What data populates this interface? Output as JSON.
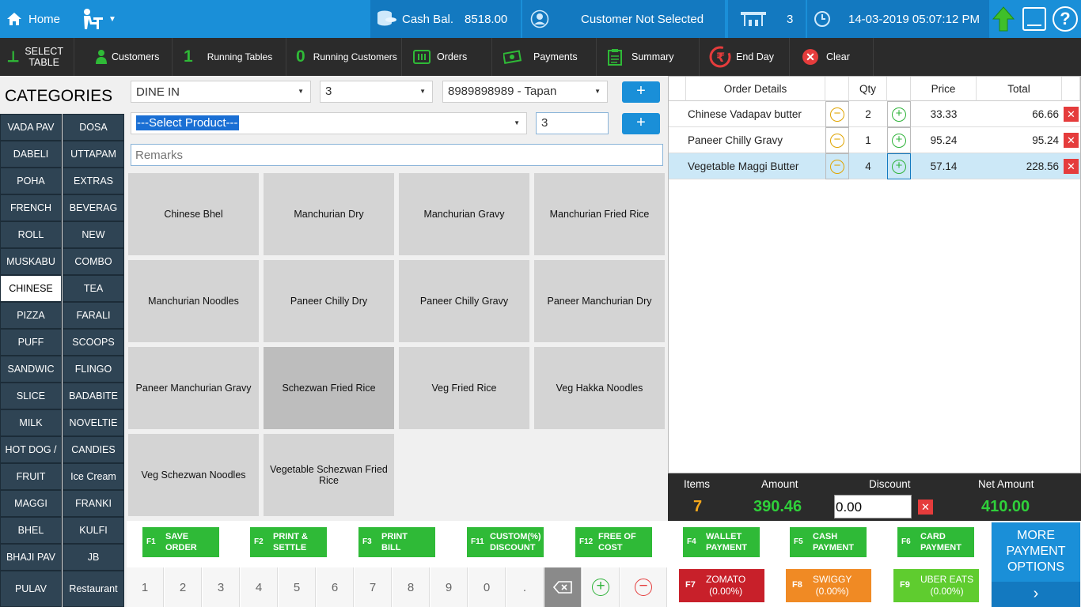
{
  "header": {
    "home": "Home",
    "cash_label": "Cash Bal.",
    "cash_value": "8518.00",
    "customer_status": "Customer Not Selected",
    "table_no": "3",
    "datetime": "14-03-2019 05:07:12 PM"
  },
  "toolbar": {
    "select_table_line1": "SELECT",
    "select_table_line2": "TABLE",
    "customers": "Customers",
    "running_tables_count": "1",
    "running_tables": "Running Tables",
    "running_customers_count": "0",
    "running_customers": "Running Customers",
    "orders": "Orders",
    "payments": "Payments",
    "summary": "Summary",
    "end_day": "End Day",
    "clear": "Clear"
  },
  "categories_title": "CATEGORIES",
  "categories": [
    "VADA PAV",
    "DOSA",
    "DABELI",
    "UTTAPAM",
    "POHA",
    "EXTRAS",
    "FRENCH",
    "BEVERAG",
    "ROLL",
    "NEW",
    "MUSKABU",
    "COMBO",
    "CHINESE",
    "TEA",
    "PIZZA",
    "FARALI",
    "PUFF",
    "SCOOPS",
    "SANDWIC",
    "FLINGO",
    "SLICE",
    "BADABITE",
    "MILK",
    "NOVELTIE",
    "HOT DOG /",
    "CANDIES",
    "FRUIT",
    "Ice Cream",
    "MAGGI",
    "FRANKI",
    "BHEL",
    "KULFI",
    "BHAJI PAV",
    "JB",
    "PULAV",
    "Restaurant"
  ],
  "selected_category": "CHINESE",
  "form": {
    "order_type": "DINE IN",
    "table": "3",
    "customer": "8989898989 - Tapan",
    "add": "+",
    "product": "---Select Product---",
    "qty": "3",
    "remarks_placeholder": "Remarks"
  },
  "products": [
    "Chinese Bhel",
    "Manchurian  Dry",
    "Manchurian  Gravy",
    "Manchurian Fried Rice",
    "Manchurian Noodles",
    "Paneer Chilly  Dry",
    "Paneer Chilly Gravy",
    "Paneer Manchurian  Dry",
    "Paneer Manchurian  Gravy",
    "Schezwan Fried Rice",
    "Veg Fried Rice",
    "Veg Hakka Noodles",
    "Veg Schezwan Noodles",
    "Vegetable Schezwan Fried Rice"
  ],
  "order": {
    "headers": [
      "Order Details",
      "Qty",
      "Price",
      "Total"
    ],
    "rows": [
      {
        "name": "Chinese Vadapav  butter",
        "qty": "2",
        "price": "33.33",
        "total": "66.66"
      },
      {
        "name": "Paneer Chilly Gravy",
        "qty": "1",
        "price": "95.24",
        "total": "95.24"
      },
      {
        "name": "Vegetable Maggi  Butter",
        "qty": "4",
        "price": "57.14",
        "total": "228.56"
      }
    ]
  },
  "summary": {
    "items_label": "Items",
    "items": "7",
    "amount_label": "Amount",
    "amount": "390.46",
    "discount_label": "Discount",
    "discount": "0.00",
    "net_label": "Net Amount",
    "net": "410.00"
  },
  "fkeys": [
    {
      "key": "F1",
      "l1": "SAVE",
      "l2": "ORDER"
    },
    {
      "key": "F2",
      "l1": "PRINT &",
      "l2": "SETTLE"
    },
    {
      "key": "F3",
      "l1": "PRINT",
      "l2": "BILL"
    },
    {
      "key": "F11",
      "l1": "CUSTOM(%)",
      "l2": "DISCOUNT"
    },
    {
      "key": "F12",
      "l1": "FREE OF",
      "l2": "COST"
    },
    {
      "key": "F4",
      "l1": "WALLET",
      "l2": "PAYMENT"
    },
    {
      "key": "F5",
      "l1": "CASH",
      "l2": "PAYMENT"
    },
    {
      "key": "F6",
      "l1": "CARD",
      "l2": "PAYMENT"
    }
  ],
  "numpad": [
    "1",
    "2",
    "3",
    "4",
    "5",
    "6",
    "7",
    "8",
    "9",
    "0",
    "."
  ],
  "aggregators": [
    {
      "key": "F7",
      "name": "ZOMATO",
      "pct": "(0.00%)",
      "color": "#c8202a"
    },
    {
      "key": "F8",
      "name": "SWIGGY",
      "pct": "(0.00%)",
      "color": "#f08a24"
    },
    {
      "key": "F9",
      "name": "UBER EATS",
      "pct": "(0.00%)",
      "color": "#5fcc2f"
    }
  ],
  "more_payment": "MORE PAYMENT OPTIONS",
  "colors": {
    "accent": "#1a8fd8",
    "green": "#2fba37",
    "category_bg": "#2f4454"
  }
}
